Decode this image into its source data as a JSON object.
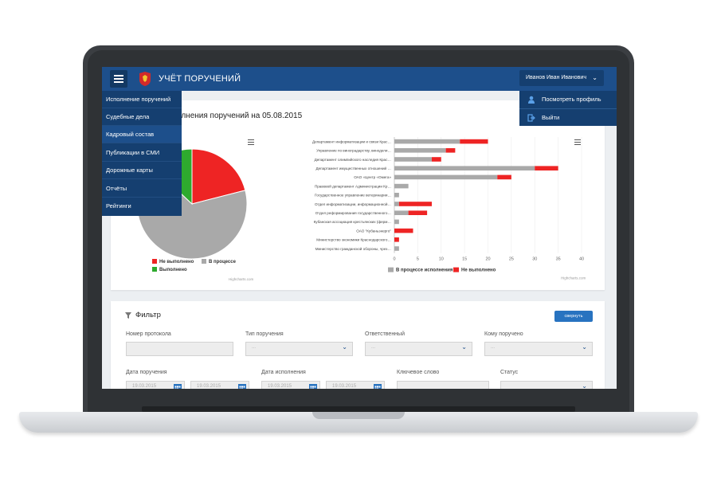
{
  "app": {
    "title": "УЧЁТ ПОРУЧЕНИЙ"
  },
  "header": {
    "user_name": "Иванов Иван Иванович"
  },
  "user_menu": [
    {
      "label": "Посмотреть профиль",
      "icon": "user-icon"
    },
    {
      "label": "Выйти",
      "icon": "logout-icon"
    }
  ],
  "sidebar": {
    "items": [
      {
        "label": "Исполнение поручений"
      },
      {
        "label": "Судебные дела"
      },
      {
        "label": "Кадровый состав"
      },
      {
        "label": "Публикации в СМИ"
      },
      {
        "label": "Дорожные карты"
      },
      {
        "label": "Отчёты"
      },
      {
        "label": "Рейтинги"
      }
    ],
    "active_index": 2
  },
  "panel": {
    "title": "...лнения поручений на 05.08.2015"
  },
  "chart_data": [
    {
      "type": "pie",
      "slices": [
        {
          "name": "Не выполнено",
          "value": 21,
          "color": "#ee2424"
        },
        {
          "name": "В процессе",
          "value": 66,
          "color": "#a9a9a9"
        },
        {
          "name": "Выполнено",
          "value": 13,
          "color": "#2eaa2e"
        }
      ],
      "legend": [
        "Не выполнено",
        "В процессе",
        "Выполнено"
      ],
      "credit": "Highcharts.com"
    },
    {
      "type": "bar",
      "orientation": "horizontal",
      "stacked": true,
      "categories": [
        "Департамент информатизации и связи Крас…",
        "Управление по виноградарству, винодели…",
        "Департамент олимпийского наследия Крас…",
        "Департамент имущественных отношений …",
        "ОАО «Центр «Омега»",
        "Правовой департамент Администрации Кр…",
        "Государственное управление ветеринарии…",
        "Отдел информатизации, информационной…",
        "Отдел реформирования государственного…",
        "Кубанская ассоциация крестьянских (ферм…",
        "ОАО \"Кубаньэнерго\"",
        "Министерство экономики Краснодарского…",
        "Министерство гражданской обороны, чрез…"
      ],
      "series": [
        {
          "name": "В процессе исполнения",
          "color": "#a9a9a9",
          "values": [
            14,
            11,
            8,
            30,
            22,
            3,
            1,
            1,
            3,
            1,
            0,
            0,
            1
          ]
        },
        {
          "name": "Не выполнено",
          "color": "#ee2424",
          "values": [
            6,
            2,
            2,
            5,
            3,
            0,
            0,
            7,
            4,
            0,
            4,
            1,
            0
          ]
        }
      ],
      "xlim": [
        0,
        40
      ],
      "xticks": [
        "0",
        "5",
        "10",
        "15",
        "20",
        "25",
        "30",
        "35",
        "40"
      ],
      "credit": "Highcharts.com"
    }
  ],
  "filter": {
    "title": "Фильтр",
    "collapse_label": "свернуть",
    "fields": {
      "protocol_number": {
        "label": "Номер протокола"
      },
      "order_type": {
        "label": "Тип поручения",
        "value": "..."
      },
      "responsible": {
        "label": "Ответственный",
        "value": "..."
      },
      "assigned_to": {
        "label": "Кому поручено",
        "value": "..."
      },
      "order_date": {
        "label": "Дата поручения",
        "from": "19.03.2015",
        "to": "19.03.2015"
      },
      "due_date": {
        "label": "Дата исполнения",
        "from": "19.03.2015",
        "to": "19.03.2015"
      },
      "keyword": {
        "label": "Ключевое слово"
      },
      "status": {
        "label": "Статус"
      }
    }
  },
  "colors": {
    "header": "#1d4f8b",
    "sidebar": "#153f70",
    "accent_button": "#2873c0"
  }
}
